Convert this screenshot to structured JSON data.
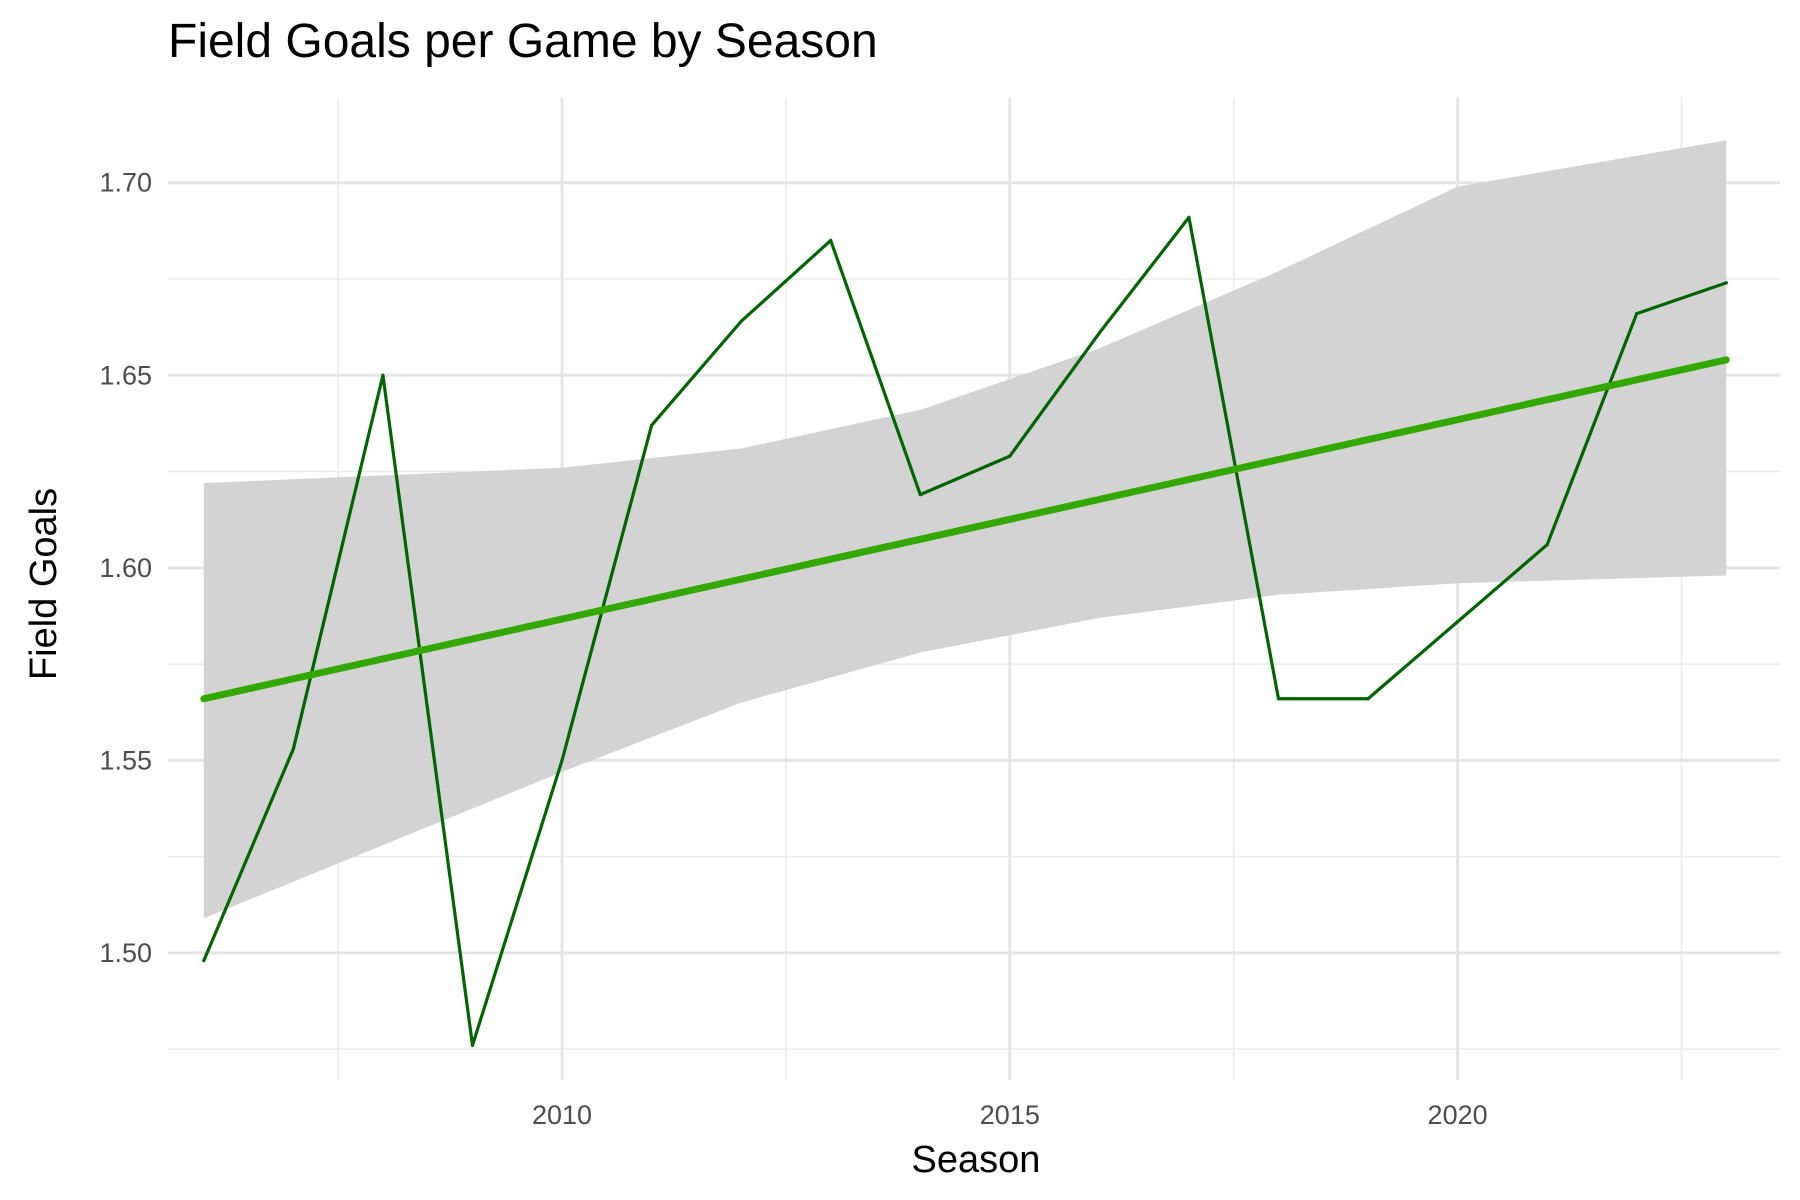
{
  "chart_data": {
    "type": "line",
    "title": "Field Goals per Game by Season",
    "xlabel": "Season",
    "ylabel": "Field Goals",
    "xlim": [
      2005.6,
      2023.6
    ],
    "ylim": [
      1.467,
      1.722
    ],
    "x_ticks": [
      2010,
      2015,
      2020
    ],
    "x_tick_labels": [
      "2010",
      "2015",
      "2020"
    ],
    "x_minor_ticks": [
      2007.5,
      2012.5,
      2017.5,
      2022.5
    ],
    "y_ticks": [
      1.5,
      1.55,
      1.6,
      1.65,
      1.7
    ],
    "y_tick_labels": [
      "1.50",
      "1.55",
      "1.60",
      "1.65",
      "1.70"
    ],
    "y_minor_ticks": [
      1.475,
      1.525,
      1.575,
      1.625,
      1.675
    ],
    "grid": true,
    "legend": "none",
    "series": [
      {
        "x": [
          2006,
          2007,
          2008,
          2009,
          2010,
          2011,
          2012,
          2013,
          2014,
          2015,
          2016,
          2017,
          2018,
          2019,
          2020,
          2021,
          2022,
          2023
        ],
        "values": [
          1.498,
          1.553,
          1.65,
          1.476,
          1.55,
          1.637,
          1.664,
          1.685,
          1.619,
          1.629,
          1.661,
          1.691,
          1.566,
          1.566,
          1.586,
          1.606,
          1.666,
          1.674
        ],
        "color": "#006400"
      }
    ],
    "trend": {
      "x": [
        2006,
        2023
      ],
      "values": [
        1.566,
        1.654
      ],
      "color": "#33a800",
      "ci_lower": [
        1.509,
        1.528,
        1.547,
        1.565,
        1.578,
        1.587,
        1.593,
        1.596,
        1.598
      ],
      "ci_upper": [
        1.622,
        1.624,
        1.626,
        1.631,
        1.641,
        1.657,
        1.677,
        1.699,
        1.711
      ],
      "ci_x": [
        2006,
        2008,
        2010,
        2012,
        2014,
        2016,
        2018,
        2020,
        2023
      ],
      "ci_color": "#d3d3d3"
    }
  }
}
